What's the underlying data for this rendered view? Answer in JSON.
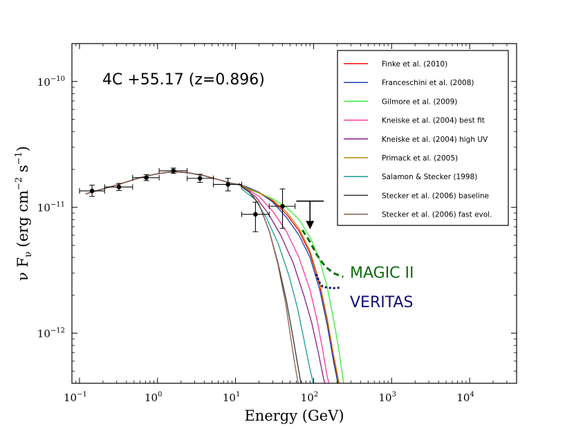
{
  "chart_data": {
    "type": "line",
    "title": "4C +55.17 (z=0.896)",
    "xlabel": "Energy (GeV)",
    "ylabel_prefix": "ν F",
    "ylabel_sub": "ν",
    "ylabel_units": "(erg cm",
    "ylabel_exp1": "−2",
    "ylabel_s": " s",
    "ylabel_exp2": "−1",
    "ylabel_close": ")",
    "x_scale": "log",
    "y_scale": "log",
    "xlim": [
      0.08,
      40000
    ],
    "ylim": [
      4e-13,
      2e-10
    ],
    "x_ticks": [
      {
        "value": 0.1,
        "base": "10",
        "exp": "-1"
      },
      {
        "value": 1,
        "base": "10",
        "exp": "0"
      },
      {
        "value": 10,
        "base": "10",
        "exp": "1"
      },
      {
        "value": 100,
        "base": "10",
        "exp": "2"
      },
      {
        "value": 1000,
        "base": "10",
        "exp": "3"
      },
      {
        "value": 10000,
        "base": "10",
        "exp": "4"
      }
    ],
    "y_ticks": [
      {
        "value": 1e-12,
        "base": "10",
        "exp": "-12"
      },
      {
        "value": 1e-11,
        "base": "10",
        "exp": "-11"
      },
      {
        "value": 1e-10,
        "base": "10",
        "exp": "-10"
      }
    ],
    "legend_position": "top-right",
    "intrinsic": {
      "x": [
        0.12,
        0.2,
        0.35,
        0.6,
        1.0,
        1.6,
        2.5,
        4.0,
        6.0,
        9.0,
        12.0
      ],
      "y": [
        1.28e-11,
        1.4e-11,
        1.55e-11,
        1.72e-11,
        1.85e-11,
        1.92e-11,
        1.88e-11,
        1.78e-11,
        1.66e-11,
        1.55e-11,
        1.5e-11
      ]
    },
    "series": [
      {
        "name": "Finke et al. (2010)",
        "color": "#ff0000",
        "x": [
          14,
          20,
          30,
          45,
          65,
          90,
          120,
          150,
          180,
          200,
          215
        ],
        "y": [
          1.42e-11,
          1.3e-11,
          1.12e-11,
          8.8e-12,
          6.5e-12,
          4.3e-12,
          2.4e-12,
          1.25e-12,
          6.5e-13,
          4.5e-13,
          3.5e-13
        ]
      },
      {
        "name": "Franceschini et al. (2008)",
        "color": "#1c3fb5",
        "x": [
          14,
          20,
          30,
          45,
          65,
          90,
          120,
          150,
          180,
          200,
          212
        ],
        "y": [
          1.45e-11,
          1.32e-11,
          1.1e-11,
          8.3e-12,
          6e-12,
          4e-12,
          2.2e-12,
          1.15e-12,
          6e-13,
          4.3e-13,
          3.5e-13
        ]
      },
      {
        "name": "Gilmore et al. (2009)",
        "color": "#33ee33",
        "x": [
          14,
          20,
          30,
          45,
          65,
          90,
          120,
          150,
          180,
          210,
          235,
          250
        ],
        "y": [
          1.4e-11,
          1.3e-11,
          1.17e-11,
          1e-11,
          8e-12,
          5.8e-12,
          3.8e-12,
          2.3e-12,
          1.3e-12,
          7.5e-13,
          4.6e-13,
          3.5e-13
        ]
      },
      {
        "name": "Kneiske et al. (2004) best fit",
        "color": "#ff3399",
        "x": [
          14,
          20,
          30,
          45,
          65,
          90,
          110,
          130,
          150,
          165
        ],
        "y": [
          1.4e-11,
          1.22e-11,
          9.3e-12,
          6.4e-12,
          4e-12,
          2.2e-12,
          1.3e-12,
          7.5e-13,
          4.5e-13,
          3.5e-13
        ]
      },
      {
        "name": "Kneiske et al. (2004) high UV",
        "color": "#8a1a8a",
        "x": [
          12,
          18,
          26,
          38,
          55,
          75,
          95,
          115,
          135,
          150
        ],
        "y": [
          1.45e-11,
          1.22e-11,
          9e-12,
          6e-12,
          3.6e-12,
          2e-12,
          1.2e-12,
          7e-13,
          4.3e-13,
          3.5e-13
        ]
      },
      {
        "name": "Primack et al. (2005)",
        "color": "#b8860b",
        "x": [
          14,
          20,
          30,
          45,
          65,
          90,
          120,
          150,
          180,
          205,
          222
        ],
        "y": [
          1.42e-11,
          1.31e-11,
          1.14e-11,
          9.2e-12,
          6.8e-12,
          4.5e-12,
          2.5e-12,
          1.3e-12,
          6.8e-13,
          4.5e-13,
          3.5e-13
        ]
      },
      {
        "name": "Salamon & Stecker (1998)",
        "color": "#159b8f",
        "x": [
          12,
          18,
          25,
          35,
          48,
          62,
          75,
          88,
          100,
          108
        ],
        "y": [
          1.4e-11,
          1.15e-11,
          8.2e-12,
          5.2e-12,
          2.9e-12,
          1.6e-12,
          9e-13,
          5.5e-13,
          3.9e-13,
          3.5e-13
        ]
      },
      {
        "name": "Stecker et al. (2006) baseline",
        "color": "#333333",
        "x": [
          11,
          15,
          20,
          27,
          35,
          45,
          55,
          62,
          68,
          72
        ],
        "y": [
          1.52e-11,
          1.32e-11,
          1.05e-11,
          6.5e-12,
          3.6e-12,
          1.8e-12,
          9e-13,
          5.8e-13,
          4.2e-13,
          3.5e-13
        ]
      },
      {
        "name": "Stecker et al. (2006) fast evol.",
        "color": "#8b5a4a",
        "x": [
          11,
          15,
          20,
          27,
          35,
          44,
          52,
          58,
          63,
          66
        ],
        "y": [
          1.55e-11,
          1.35e-11,
          1.06e-11,
          6.5e-12,
          3.5e-12,
          1.7e-12,
          8.5e-13,
          5.5e-13,
          4.1e-13,
          3.5e-13
        ]
      }
    ],
    "points": [
      {
        "x": 0.145,
        "y": 1.35e-11,
        "xlo": 0.1,
        "xhi": 0.21,
        "ylo": 1.22e-11,
        "yhi": 1.5e-11
      },
      {
        "x": 0.32,
        "y": 1.45e-11,
        "xlo": 0.21,
        "xhi": 0.48,
        "ylo": 1.36e-11,
        "yhi": 1.55e-11
      },
      {
        "x": 0.72,
        "y": 1.72e-11,
        "xlo": 0.48,
        "xhi": 1.05,
        "ylo": 1.63e-11,
        "yhi": 1.82e-11
      },
      {
        "x": 1.6,
        "y": 1.95e-11,
        "xlo": 1.05,
        "xhi": 2.4,
        "ylo": 1.86e-11,
        "yhi": 2.05e-11
      },
      {
        "x": 3.5,
        "y": 1.7e-11,
        "xlo": 2.4,
        "xhi": 5.2,
        "ylo": 1.58e-11,
        "yhi": 1.83e-11
      },
      {
        "x": 8.0,
        "y": 1.52e-11,
        "xlo": 5.2,
        "xhi": 12,
        "ylo": 1.35e-11,
        "yhi": 1.7e-11
      },
      {
        "x": 18,
        "y": 8.8e-12,
        "xlo": 12,
        "xhi": 27,
        "ylo": 6.4e-12,
        "yhi": 1.1e-11
      },
      {
        "x": 40,
        "y": 1.02e-11,
        "xlo": 27,
        "xhi": 58,
        "ylo": 6.8e-12,
        "yhi": 1.4e-11
      }
    ],
    "upper_limit": {
      "x": 90,
      "y": 1.12e-11,
      "xlo": 60,
      "xhi": 135,
      "arrow_to": 6.7e-12
    },
    "annotations": [
      {
        "label": "MAGIC II",
        "color": "#0d6b0d",
        "x": [
          72,
          90,
          110,
          140,
          180,
          240
        ],
        "y": [
          6.6e-12,
          5.3e-12,
          4.2e-12,
          3.4e-12,
          3e-12,
          2.8e-12
        ],
        "text_x": 480,
        "text_y": 3.05e-12
      },
      {
        "label": "VERITAS",
        "color": "#0d0d7a",
        "x": [
          108,
          118,
          130,
          150,
          180,
          220
        ],
        "y": [
          2.95e-12,
          2.55e-12,
          2.35e-12,
          2.3e-12,
          2.28e-12,
          2.3e-12
        ],
        "text_x": 480,
        "text_y": 1.78e-12
      }
    ]
  }
}
